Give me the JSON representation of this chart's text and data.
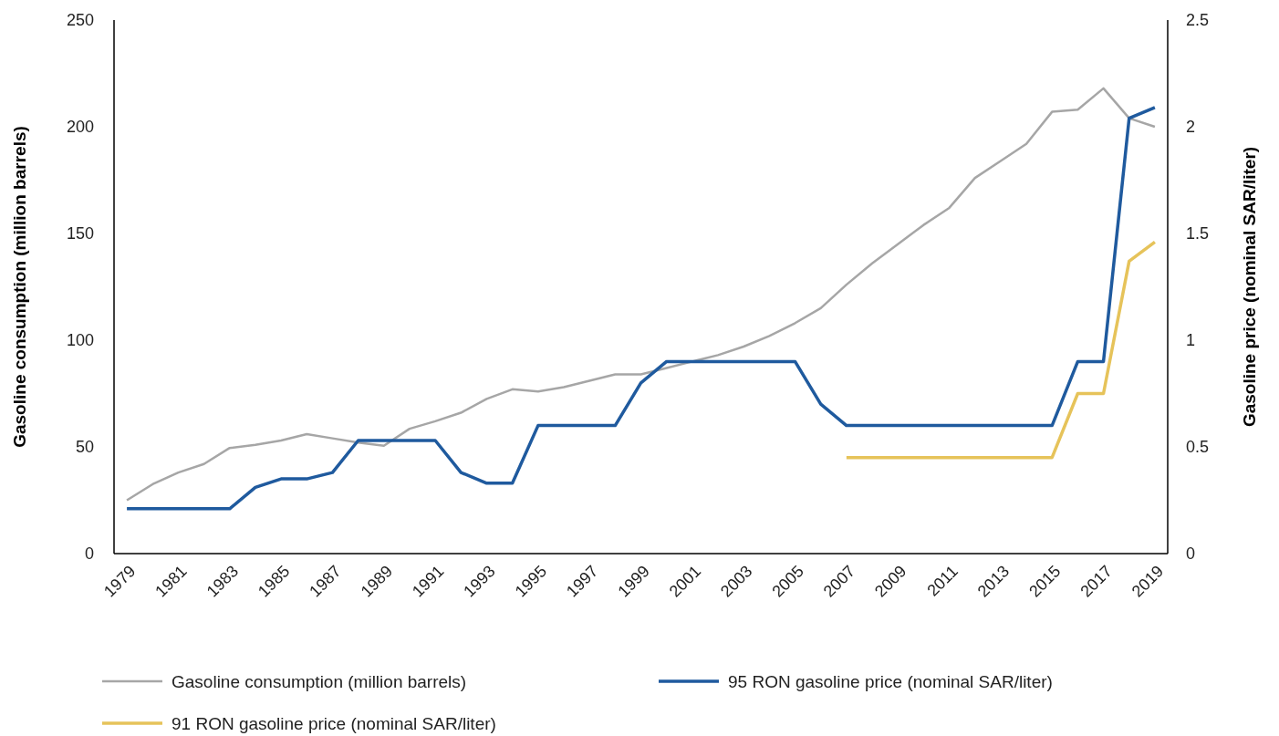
{
  "chart_data": {
    "type": "line",
    "xlabel": null,
    "ylabel": "Gasoline consumption (million barrels)",
    "y2label": "Gasoline price (nominal SAR/liter)",
    "x": [
      1979,
      1980,
      1981,
      1982,
      1983,
      1984,
      1985,
      1986,
      1987,
      1988,
      1989,
      1990,
      1991,
      1992,
      1993,
      1994,
      1995,
      1996,
      1997,
      1998,
      1999,
      2000,
      2001,
      2002,
      2003,
      2004,
      2005,
      2006,
      2007,
      2008,
      2009,
      2010,
      2011,
      2012,
      2013,
      2014,
      2015,
      2016,
      2017,
      2018,
      2019
    ],
    "series": [
      {
        "name": "Gasoline consumption (million barrels)",
        "color": "#a6a6a6",
        "values": [
          25,
          32.5,
          38,
          42,
          49.5,
          51,
          53,
          56,
          54,
          52,
          50.5,
          58.5,
          62,
          66,
          72.5,
          77,
          76,
          78,
          81,
          84,
          84,
          87,
          90,
          93,
          97,
          102,
          108,
          115,
          126,
          136,
          145,
          154,
          162,
          176,
          184,
          192,
          207,
          208,
          218,
          204,
          200
        ]
      },
      {
        "name": "95 RON gasoline price (nominal SAR/liter)",
        "color": "#1f5a9e",
        "axis": "y2",
        "values": [
          0.21,
          0.21,
          0.21,
          0.21,
          0.21,
          0.31,
          0.35,
          0.35,
          0.38,
          0.53,
          0.53,
          0.53,
          0.53,
          0.38,
          0.33,
          0.33,
          0.6,
          0.6,
          0.6,
          0.6,
          0.8,
          0.9,
          0.9,
          0.9,
          0.9,
          0.9,
          0.9,
          0.7,
          0.6,
          0.6,
          0.6,
          0.6,
          0.6,
          0.6,
          0.6,
          0.6,
          0.6,
          0.9,
          0.9,
          2.04,
          2.09
        ]
      },
      {
        "name": "91 RON gasoline price (nominal SAR/liter)",
        "color": "#e6c35a",
        "axis": "y2",
        "values": [
          null,
          null,
          null,
          null,
          null,
          null,
          null,
          null,
          null,
          null,
          null,
          null,
          null,
          null,
          null,
          null,
          null,
          null,
          null,
          null,
          null,
          null,
          null,
          null,
          null,
          null,
          null,
          null,
          0.45,
          0.45,
          0.45,
          0.45,
          0.45,
          0.45,
          0.45,
          0.45,
          0.45,
          0.75,
          0.75,
          1.37,
          1.46
        ]
      }
    ],
    "xlim": [
      1978.5,
      2019.5
    ],
    "xticks": [
      1979,
      1981,
      1983,
      1985,
      1987,
      1989,
      1991,
      1993,
      1995,
      1997,
      1999,
      2001,
      2003,
      2005,
      2007,
      2009,
      2011,
      2013,
      2015,
      2017,
      2019
    ],
    "ylim": [
      0,
      250
    ],
    "yticks": [
      0,
      50,
      100,
      150,
      200,
      250
    ],
    "y2lim": [
      0,
      2.5
    ],
    "y2ticks": [
      0,
      0.5,
      1,
      1.5,
      2,
      2.5
    ],
    "legend": "bottom",
    "grid": false
  }
}
